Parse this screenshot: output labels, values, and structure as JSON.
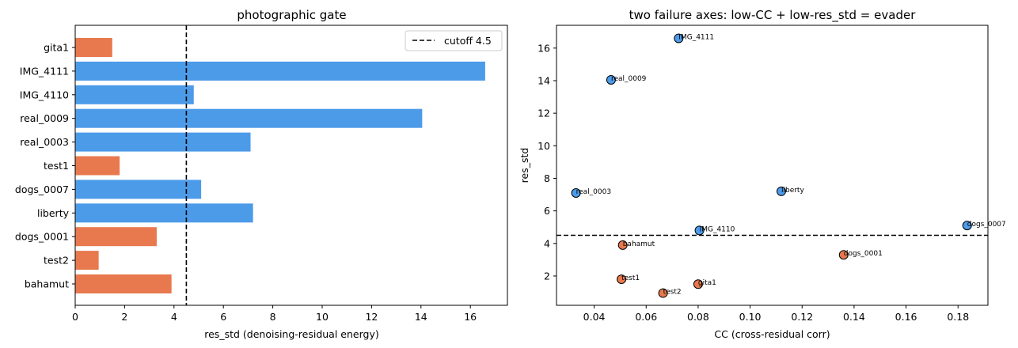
{
  "colors": {
    "photographic": "#4c9be8",
    "non_photographic": "#e8794e"
  },
  "chart_data": [
    {
      "type": "bar",
      "orientation": "horizontal",
      "title": "photographic gate",
      "xlabel": "res_std (denoising-residual energy)",
      "ylabel": "",
      "xlim": [
        0,
        17.5
      ],
      "xticks": [
        0,
        2,
        4,
        6,
        8,
        10,
        12,
        14,
        16
      ],
      "grid": false,
      "legend": {
        "placement": "top-right",
        "entries": [
          "cutoff 4.5"
        ]
      },
      "cutoff": 4.5,
      "categories": [
        "gita1",
        "IMG_4111",
        "IMG_4110",
        "real_0009",
        "real_0003",
        "test1",
        "dogs_0007",
        "liberty",
        "dogs_0001",
        "test2",
        "bahamut"
      ],
      "values": [
        1.5,
        16.6,
        4.8,
        14.05,
        7.1,
        1.8,
        5.1,
        7.2,
        3.3,
        0.95,
        3.9
      ],
      "bar_class": [
        "non_photographic",
        "photographic",
        "photographic",
        "photographic",
        "photographic",
        "non_photographic",
        "photographic",
        "photographic",
        "non_photographic",
        "non_photographic",
        "non_photographic"
      ]
    },
    {
      "type": "scatter",
      "title": "two failure axes: low-CC + low-res_std = evader",
      "xlabel": "CC (cross-residual corr)",
      "ylabel": "res_std",
      "xlim": [
        0.0255,
        0.1915
      ],
      "ylim": [
        0.2,
        17.4
      ],
      "xticks": [
        0.04,
        0.06,
        0.08,
        0.1,
        0.12,
        0.14,
        0.16,
        0.18
      ],
      "xtick_labels": [
        "0.04",
        "0.06",
        "0.08",
        "0.10",
        "0.12",
        "0.14",
        "0.16",
        "0.18"
      ],
      "yticks": [
        2,
        4,
        6,
        8,
        10,
        12,
        14,
        16
      ],
      "grid": false,
      "cutoff": 4.5,
      "points": [
        {
          "label": "IMG_4111",
          "x": 0.0725,
          "y": 16.6,
          "class": "photographic"
        },
        {
          "label": "real_0009",
          "x": 0.0465,
          "y": 14.05,
          "class": "photographic"
        },
        {
          "label": "real_0003",
          "x": 0.033,
          "y": 7.1,
          "class": "photographic"
        },
        {
          "label": "liberty",
          "x": 0.112,
          "y": 7.2,
          "class": "photographic"
        },
        {
          "label": "IMG_4110",
          "x": 0.0805,
          "y": 4.8,
          "class": "photographic"
        },
        {
          "label": "dogs_0007",
          "x": 0.1835,
          "y": 5.1,
          "class": "photographic"
        },
        {
          "label": "bahamut",
          "x": 0.051,
          "y": 3.9,
          "class": "non_photographic"
        },
        {
          "label": "dogs_0001",
          "x": 0.136,
          "y": 3.3,
          "class": "non_photographic"
        },
        {
          "label": "test1",
          "x": 0.0505,
          "y": 1.8,
          "class": "non_photographic"
        },
        {
          "label": "gita1",
          "x": 0.08,
          "y": 1.5,
          "class": "non_photographic"
        },
        {
          "label": "test2",
          "x": 0.0665,
          "y": 0.95,
          "class": "non_photographic"
        }
      ]
    }
  ]
}
